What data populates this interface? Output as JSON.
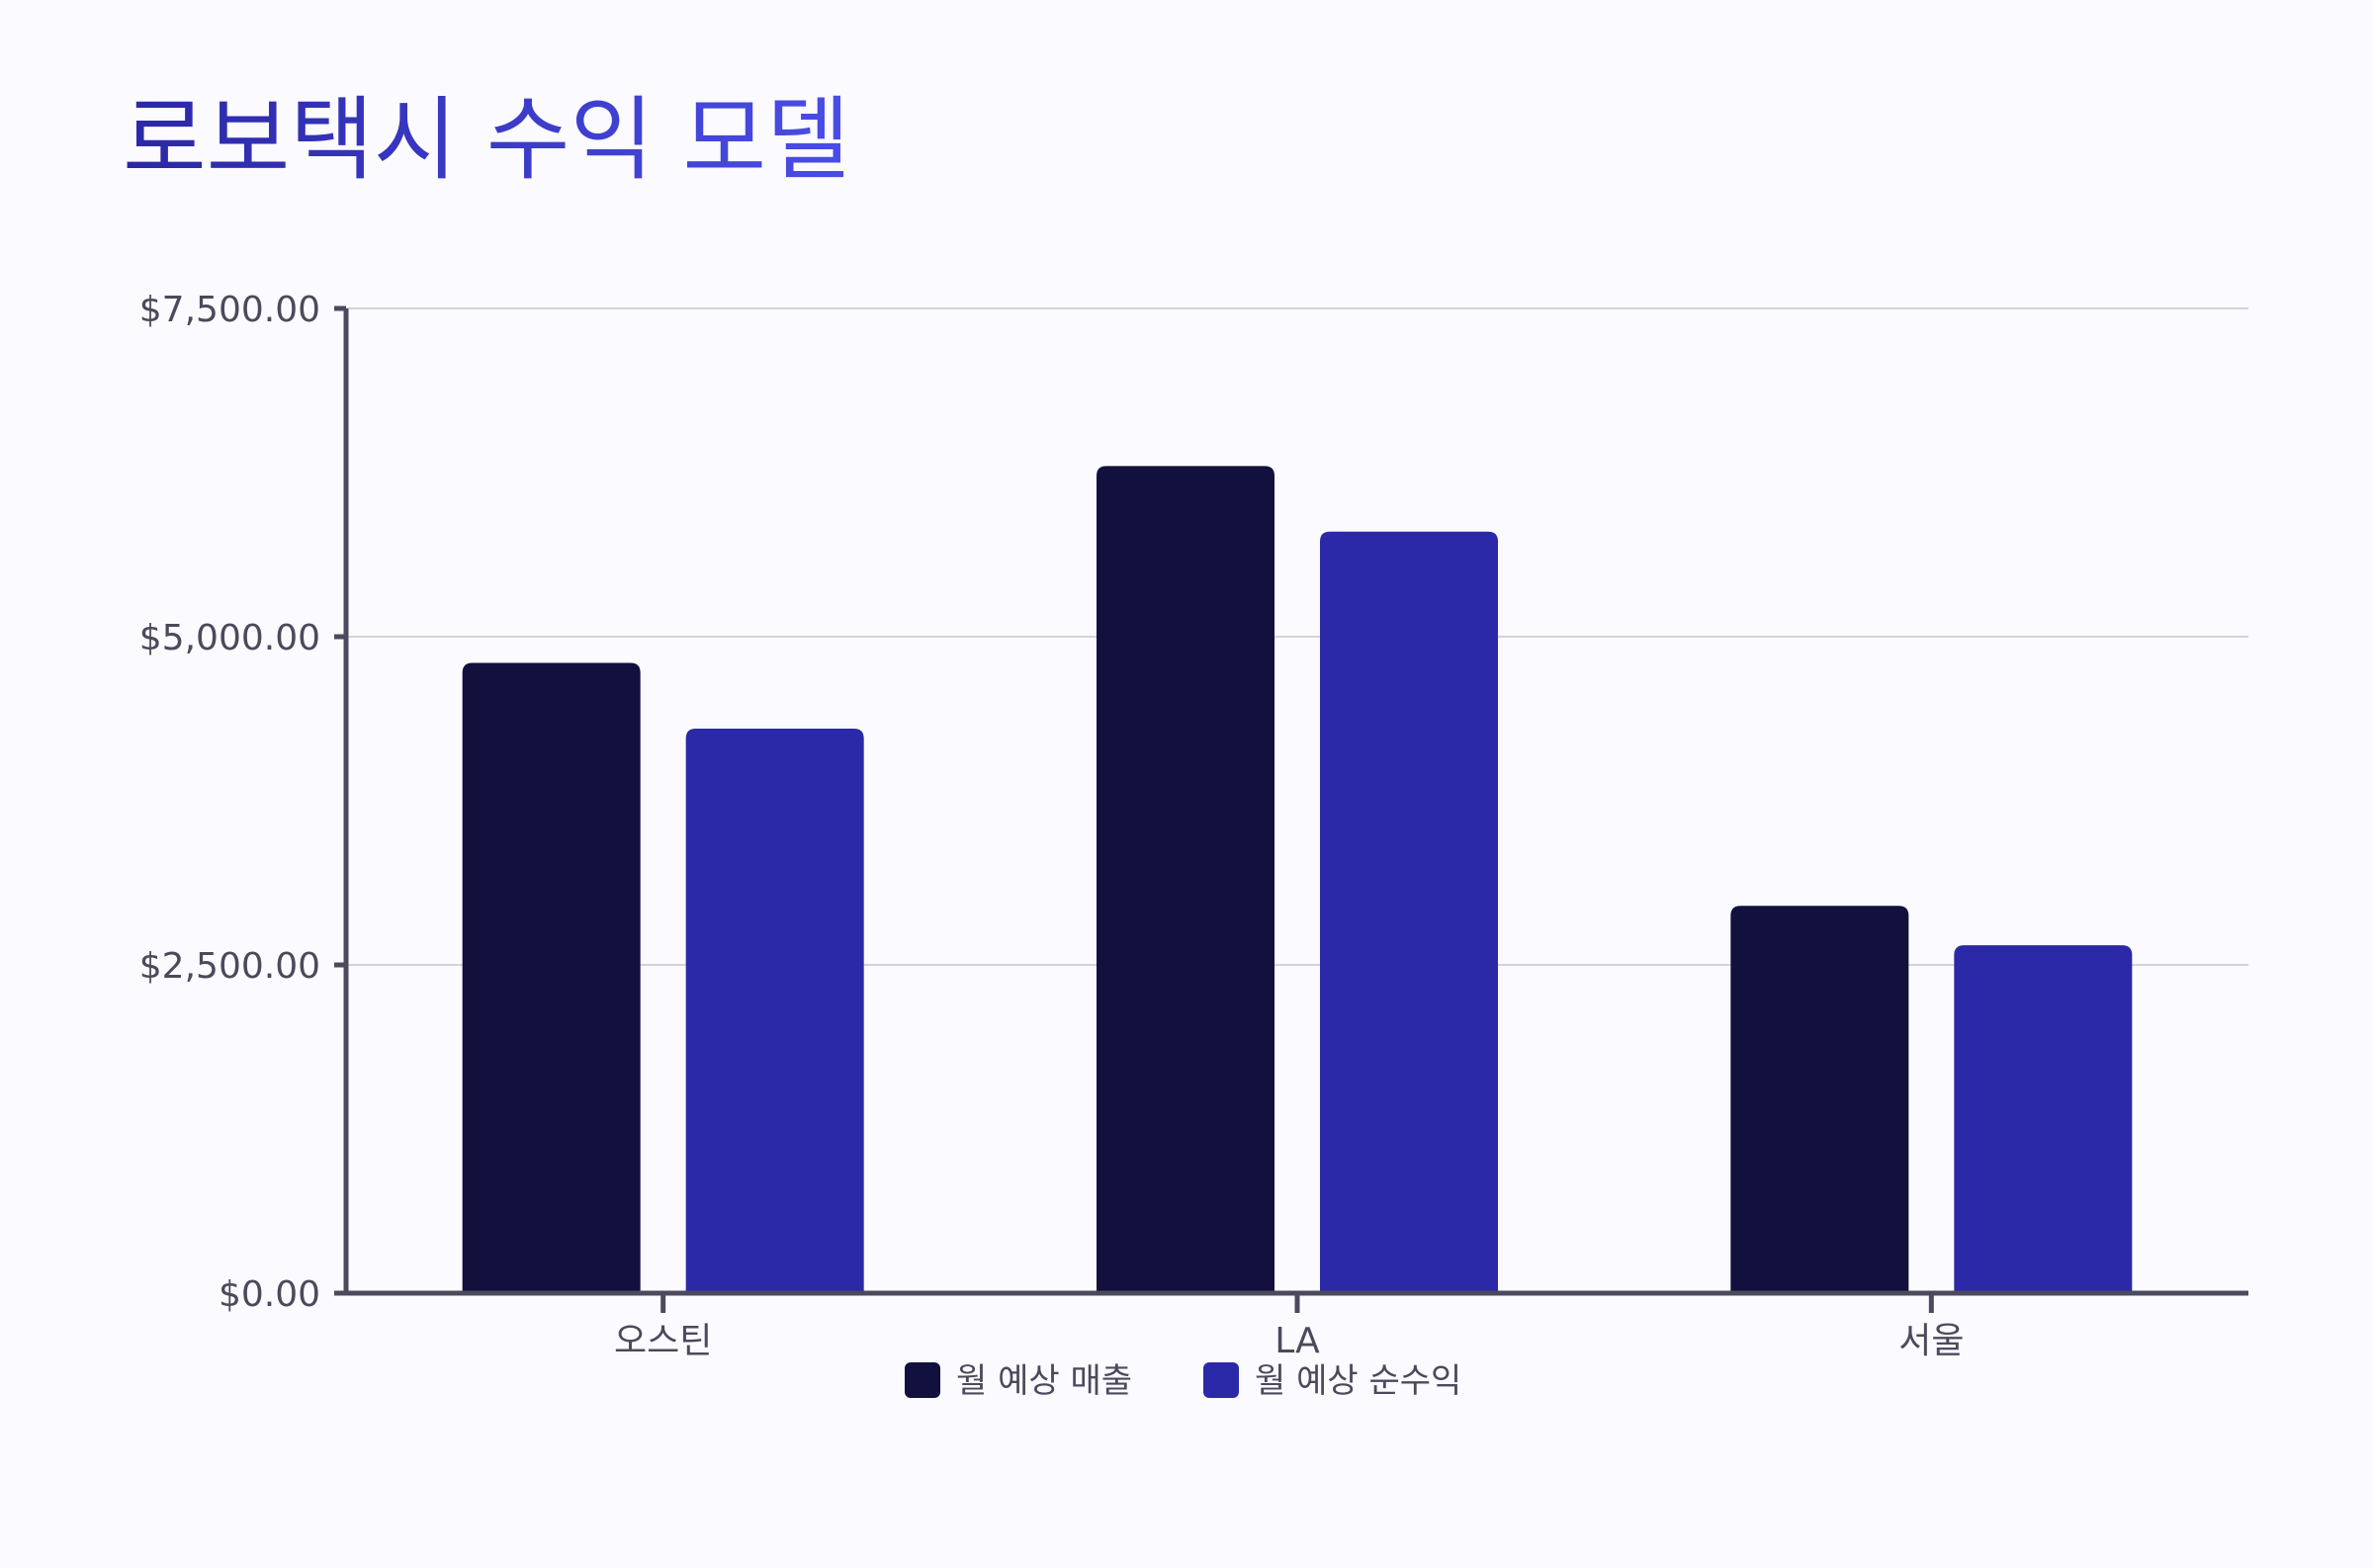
{
  "chart_data": {
    "type": "bar",
    "title": "로보택시 수익 모델",
    "xlabel": "",
    "ylabel": "",
    "categories": [
      "오스틴",
      "LA",
      "서울"
    ],
    "series": [
      {
        "name": "월 예상 매출",
        "values": [
          4800,
          6300,
          2950
        ],
        "color": "#12103d"
      },
      {
        "name": "월 예상 순수익",
        "values": [
          4300,
          5800,
          2650
        ],
        "color": "#2b29a8"
      }
    ],
    "ylim": [
      0,
      7500
    ],
    "yticks": [
      0,
      2500,
      5000,
      7500
    ],
    "ytick_labels": [
      "$0.00",
      "$2,500.00",
      "$5,000.00",
      "$7,500.00"
    ],
    "grid": true,
    "legend_position": "bottom-center"
  }
}
